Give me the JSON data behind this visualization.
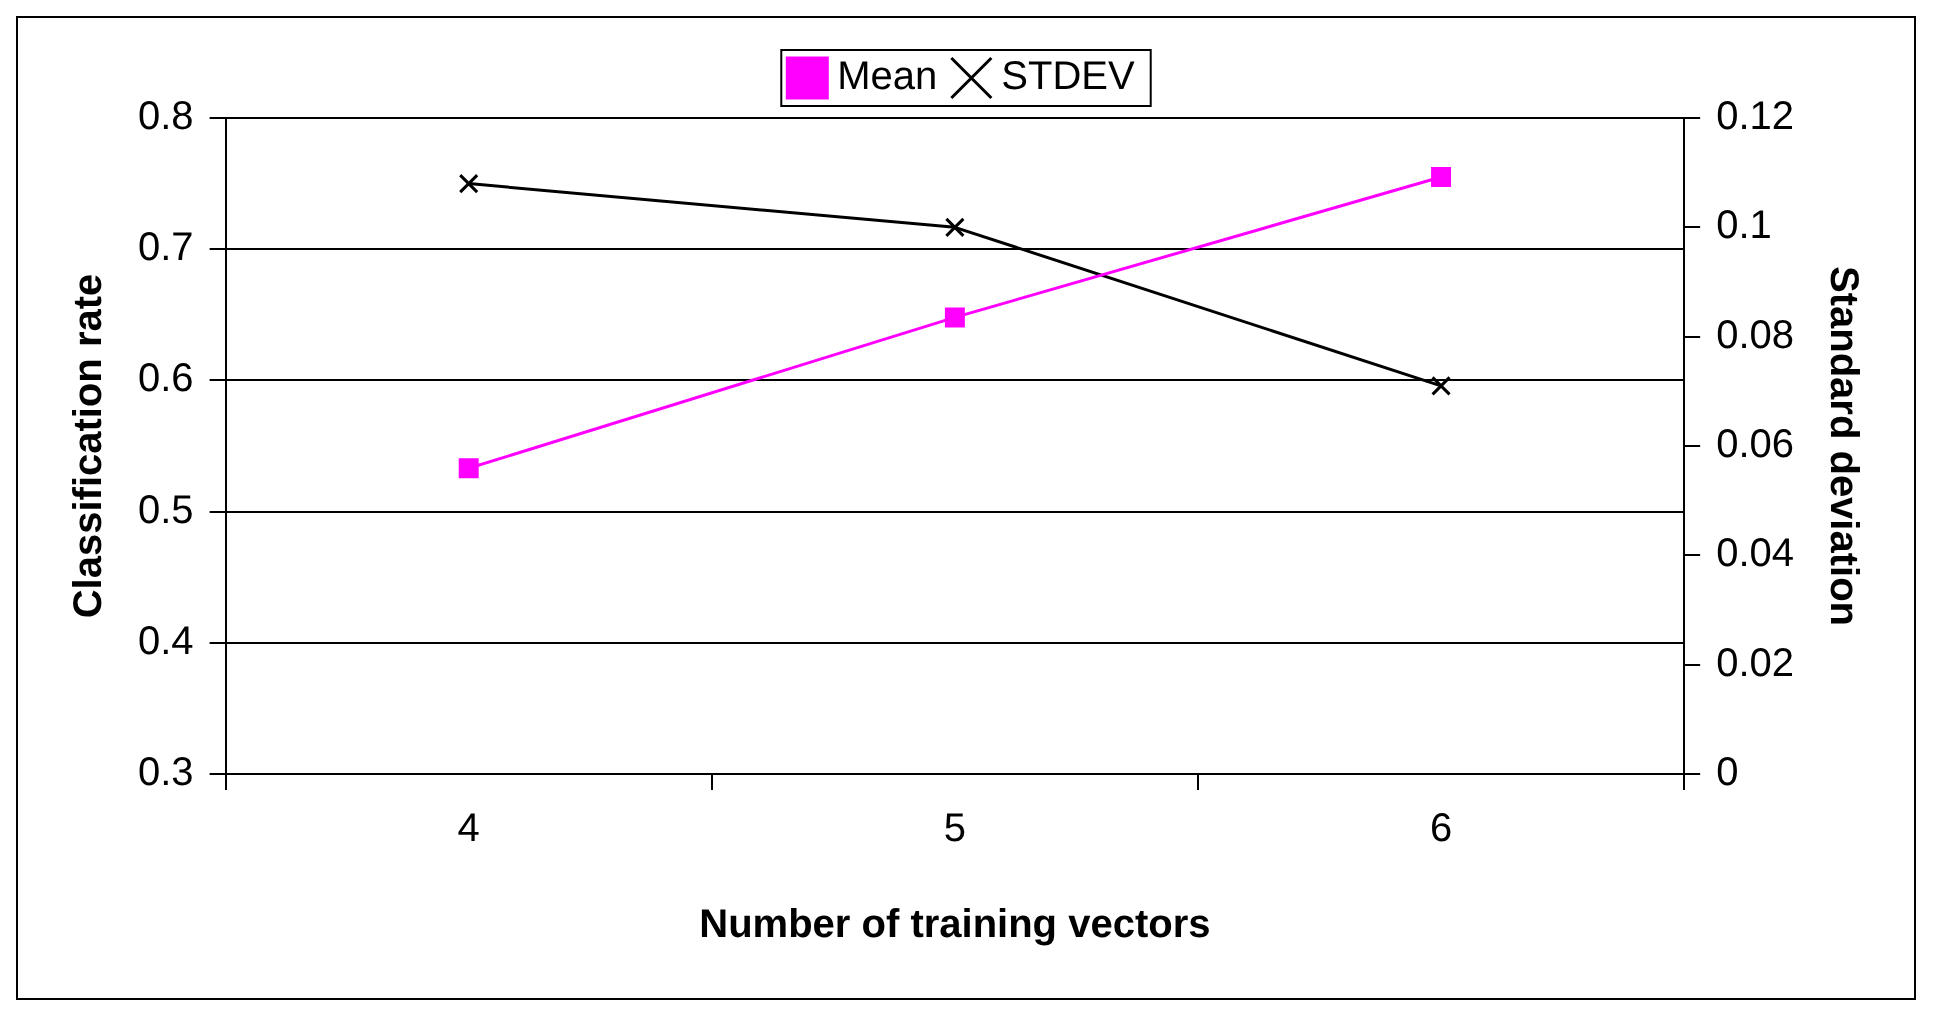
{
  "chart_data": {
    "type": "line",
    "xlabel": "Number of training vectors",
    "ylabel": "Classification rate",
    "y2label": "Standard deviation",
    "categories": [
      "4",
      "5",
      "6"
    ],
    "series": [
      {
        "name": "Mean",
        "color": "#ff00ff",
        "values": [
          0.533,
          0.648,
          0.755
        ],
        "marker": "square"
      },
      {
        "name": "STDEV",
        "color": "#000000",
        "values": [
          0.108,
          0.1,
          0.071
        ],
        "axis": "y2",
        "marker": "cross"
      }
    ],
    "ylim": [
      0.3,
      0.8
    ],
    "yticks": [
      0.3,
      0.4,
      0.5,
      0.6,
      0.7,
      0.8
    ],
    "y2lim": [
      0,
      0.12
    ],
    "y2ticks": [
      0,
      0.02,
      0.04,
      0.06,
      0.08,
      0.1,
      0.12
    ],
    "grid": "y",
    "legend": "top"
  }
}
